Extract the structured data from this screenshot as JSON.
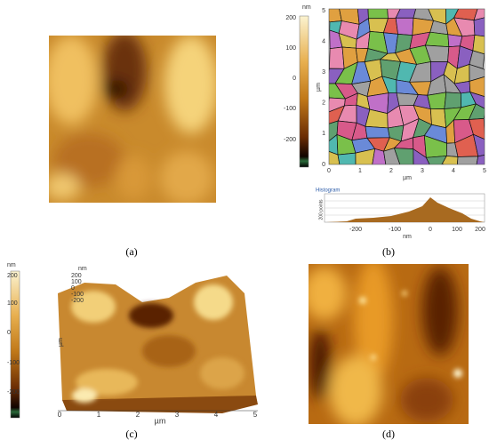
{
  "panels": [
    {
      "label": "(a)"
    },
    {
      "label": "(b)",
      "colorbar": {
        "unit": "nm",
        "ticks": [
          "200",
          "100",
          "0",
          "-100",
          "-200"
        ]
      },
      "x_axis": {
        "label": "µm",
        "ticks": [
          "0",
          "1",
          "2",
          "3",
          "4",
          "5"
        ]
      },
      "y_axis": {
        "label": "µm",
        "ticks": [
          "5",
          "4",
          "3",
          "2",
          "1",
          "0"
        ]
      },
      "histogram": {
        "title": "Histogram",
        "y_label": "200 points",
        "x_label": "nm",
        "x_ticks": [
          "-200",
          "-100",
          "0",
          "100",
          "200"
        ]
      }
    },
    {
      "label": "(c)",
      "colorbar": {
        "unit": "nm",
        "ticks": [
          "200",
          "100",
          "0",
          "-100",
          "-200"
        ]
      },
      "z_axis": {
        "unit": "nm",
        "ticks": [
          "200",
          "100",
          "0",
          "-100",
          "-200"
        ]
      },
      "x_axis": {
        "label": "µm",
        "ticks": [
          "0",
          "1",
          "2",
          "3",
          "4",
          "5"
        ]
      },
      "y_axis": {
        "label": "µm"
      }
    },
    {
      "label": "(d)"
    }
  ]
}
